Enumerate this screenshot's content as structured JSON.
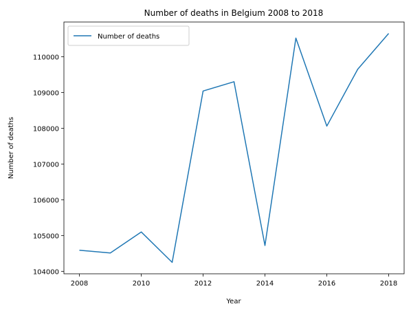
{
  "chart_data": {
    "type": "line",
    "title": "Number of deaths in Belgium 2008 to 2018",
    "xlabel": "Year",
    "ylabel": "Number of deaths",
    "x": [
      2008,
      2009,
      2010,
      2011,
      2012,
      2013,
      2014,
      2015,
      2016,
      2017,
      2018
    ],
    "series": [
      {
        "name": "Number of deaths",
        "color": "#1f77b4",
        "values": [
          104590,
          104510,
          105100,
          104250,
          109040,
          109300,
          104720,
          110520,
          108060,
          109650,
          110650
        ]
      }
    ],
    "xticks": [
      2008,
      2010,
      2012,
      2014,
      2016,
      2018
    ],
    "yticks": [
      104000,
      105000,
      106000,
      107000,
      108000,
      109000,
      110000
    ],
    "xlim": [
      2007.5,
      2018.5
    ],
    "ylim": [
      103930,
      110970
    ],
    "grid": false,
    "legend_position": "upper-left"
  }
}
